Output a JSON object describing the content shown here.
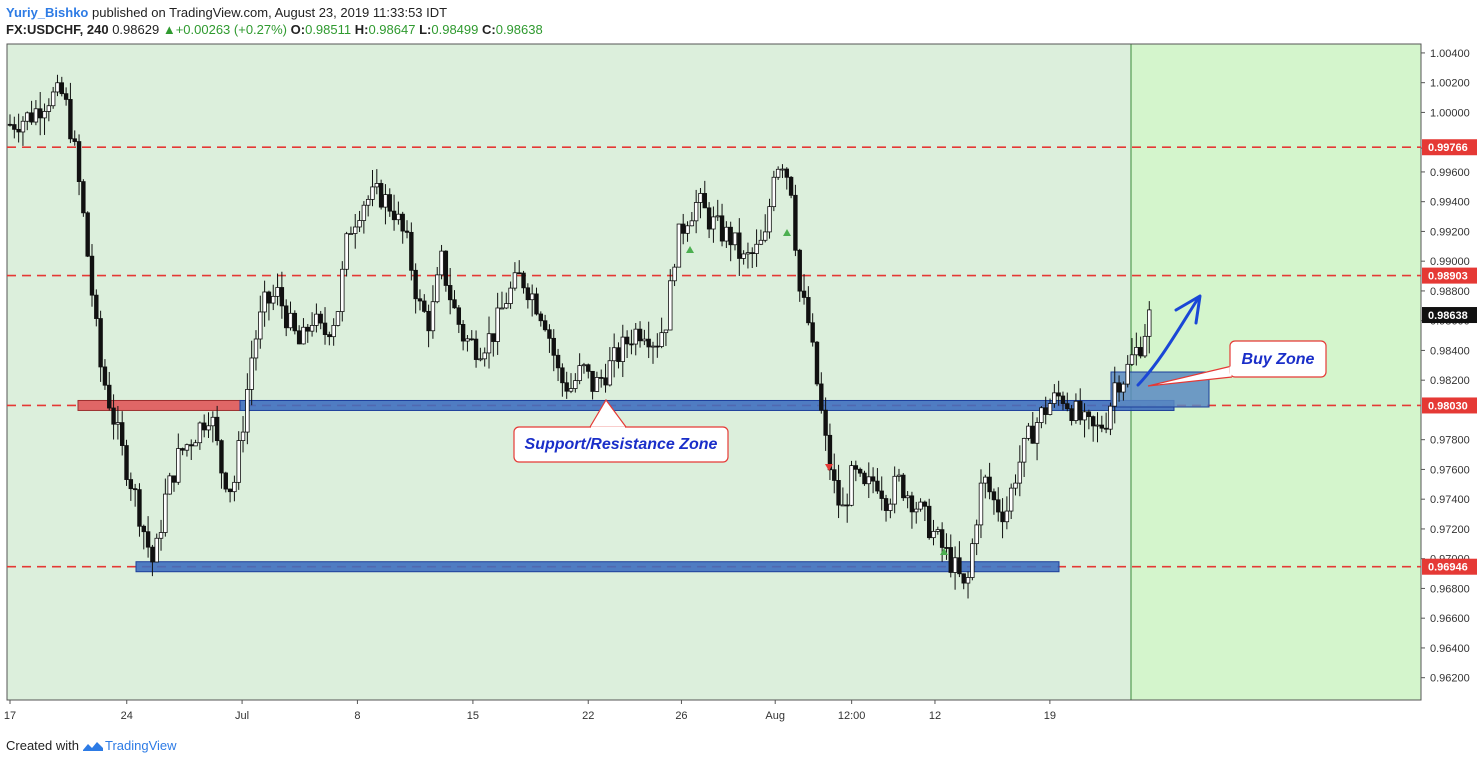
{
  "header": {
    "author": "Yuriy_Bishko",
    "published": "published on TradingView.com, August 23, 2019 11:33:53 IDT",
    "symbol": "FX:USDCHF, 240",
    "last": "0.98629",
    "change": "+0.00263 (+0.27%)",
    "o_label": "O:",
    "o": "0.98511",
    "h_label": "H:",
    "h": "0.98647",
    "l_label": "L:",
    "l": "0.98499",
    "c_label": "C:",
    "c": "0.98638"
  },
  "footer": {
    "created_with": "Created with",
    "brand": "TradingView"
  },
  "colors": {
    "plot_bg": "#dcefdc",
    "future_bg": "#d4f5cc",
    "level_line": "#e53935",
    "zone_fill": "#3f6fbf",
    "zone_border": "#1d3f9a",
    "red_zone": "#e06666",
    "arrow": "#1a47d6",
    "candle": "#000000"
  },
  "chart_data": {
    "type": "candlestick",
    "symbol": "FX:USDCHF",
    "timeframe": "240",
    "ylim": [
      0.9605,
      1.0046
    ],
    "y_ticks": [
      "1.00400",
      "1.00200",
      "1.00000",
      "0.99760",
      "0.99600",
      "0.99400",
      "0.99200",
      "0.99000",
      "0.98800",
      "0.98600",
      "0.98400",
      "0.98200",
      "0.97800",
      "0.97600",
      "0.97400",
      "0.97200",
      "0.97000",
      "0.96800",
      "0.96600",
      "0.96400",
      "0.96200"
    ],
    "x_ticks": [
      {
        "label": "17",
        "pos": 0.0
      },
      {
        "label": "24",
        "pos": 0.0828
      },
      {
        "label": "Jul",
        "pos": 0.1646
      },
      {
        "label": "8",
        "pos": 0.2464
      },
      {
        "label": "15",
        "pos": 0.3283
      },
      {
        "label": "22",
        "pos": 0.4101
      },
      {
        "label": "26",
        "pos": 0.4762
      },
      {
        "label": "Aug",
        "pos": 0.5427
      },
      {
        "label": "12:00",
        "pos": 0.5969
      },
      {
        "label": "12",
        "pos": 0.656
      },
      {
        "label": "19",
        "pos": 0.7375
      }
    ],
    "price_levels": [
      {
        "value": 0.99766,
        "label": "0.99766"
      },
      {
        "value": 0.98903,
        "label": "0.98903"
      },
      {
        "value": 0.9803,
        "label": "0.98030"
      },
      {
        "value": 0.96946,
        "label": "0.96946"
      }
    ],
    "current_price": {
      "value": 0.98638,
      "label": "0.98638"
    },
    "path": [
      [
        0.0,
        0.9992
      ],
      [
        0.015,
        0.9998
      ],
      [
        0.027,
        1.001
      ],
      [
        0.038,
        1.0012
      ],
      [
        0.045,
        0.998
      ],
      [
        0.052,
        0.993
      ],
      [
        0.058,
        0.988
      ],
      [
        0.064,
        0.983
      ],
      [
        0.072,
        0.98
      ],
      [
        0.08,
        0.977
      ],
      [
        0.088,
        0.9745
      ],
      [
        0.096,
        0.9715
      ],
      [
        0.102,
        0.9695
      ],
      [
        0.11,
        0.974
      ],
      [
        0.12,
        0.977
      ],
      [
        0.132,
        0.9785
      ],
      [
        0.142,
        0.98
      ],
      [
        0.15,
        0.976
      ],
      [
        0.158,
        0.9745
      ],
      [
        0.165,
        0.979
      ],
      [
        0.172,
        0.984
      ],
      [
        0.18,
        0.987
      ],
      [
        0.19,
        0.9878
      ],
      [
        0.198,
        0.9858
      ],
      [
        0.206,
        0.9842
      ],
      [
        0.214,
        0.9862
      ],
      [
        0.222,
        0.985
      ],
      [
        0.232,
        0.9865
      ],
      [
        0.24,
        0.992
      ],
      [
        0.25,
        0.994
      ],
      [
        0.262,
        0.9945
      ],
      [
        0.272,
        0.9935
      ],
      [
        0.282,
        0.991
      ],
      [
        0.29,
        0.987
      ],
      [
        0.298,
        0.9858
      ],
      [
        0.306,
        0.99
      ],
      [
        0.314,
        0.987
      ],
      [
        0.322,
        0.9848
      ],
      [
        0.332,
        0.9842
      ],
      [
        0.342,
        0.985
      ],
      [
        0.352,
        0.9875
      ],
      [
        0.362,
        0.989
      ],
      [
        0.37,
        0.9878
      ],
      [
        0.38,
        0.986
      ],
      [
        0.39,
        0.982
      ],
      [
        0.398,
        0.9815
      ],
      [
        0.406,
        0.9828
      ],
      [
        0.414,
        0.9815
      ],
      [
        0.422,
        0.9825
      ],
      [
        0.432,
        0.9838
      ],
      [
        0.442,
        0.9852
      ],
      [
        0.45,
        0.9855
      ],
      [
        0.458,
        0.9845
      ],
      [
        0.466,
        0.9862
      ],
      [
        0.472,
        0.991
      ],
      [
        0.48,
        0.993
      ],
      [
        0.488,
        0.994
      ],
      [
        0.496,
        0.9928
      ],
      [
        0.504,
        0.992
      ],
      [
        0.512,
        0.9915
      ],
      [
        0.52,
        0.99
      ],
      [
        0.528,
        0.9905
      ],
      [
        0.536,
        0.9915
      ],
      [
        0.542,
        0.9965
      ],
      [
        0.548,
        0.9968
      ],
      [
        0.554,
        0.995
      ],
      [
        0.56,
        0.988
      ],
      [
        0.566,
        0.986
      ],
      [
        0.572,
        0.982
      ],
      [
        0.578,
        0.978
      ],
      [
        0.584,
        0.975
      ],
      [
        0.59,
        0.973
      ],
      [
        0.598,
        0.9758
      ],
      [
        0.606,
        0.9745
      ],
      [
        0.614,
        0.9755
      ],
      [
        0.622,
        0.974
      ],
      [
        0.63,
        0.9752
      ],
      [
        0.64,
        0.974
      ],
      [
        0.65,
        0.9725
      ],
      [
        0.658,
        0.9712
      ],
      [
        0.666,
        0.97
      ],
      [
        0.672,
        0.969
      ],
      [
        0.678,
        0.9675
      ],
      [
        0.684,
        0.972
      ],
      [
        0.69,
        0.9755
      ],
      [
        0.698,
        0.9738
      ],
      [
        0.706,
        0.973
      ],
      [
        0.714,
        0.976
      ],
      [
        0.722,
        0.978
      ],
      [
        0.73,
        0.9795
      ],
      [
        0.738,
        0.9805
      ],
      [
        0.746,
        0.981
      ],
      [
        0.754,
        0.98
      ],
      [
        0.762,
        0.979
      ],
      [
        0.77,
        0.9785
      ],
      [
        0.778,
        0.9795
      ],
      [
        0.784,
        0.982
      ],
      [
        0.79,
        0.9822
      ],
      [
        0.796,
        0.9835
      ],
      [
        0.802,
        0.9845
      ],
      [
        0.808,
        0.9863
      ]
    ]
  },
  "annotations": {
    "support_resistance": "Support/Resistance Zone",
    "buy_zone": "Buy Zone"
  }
}
